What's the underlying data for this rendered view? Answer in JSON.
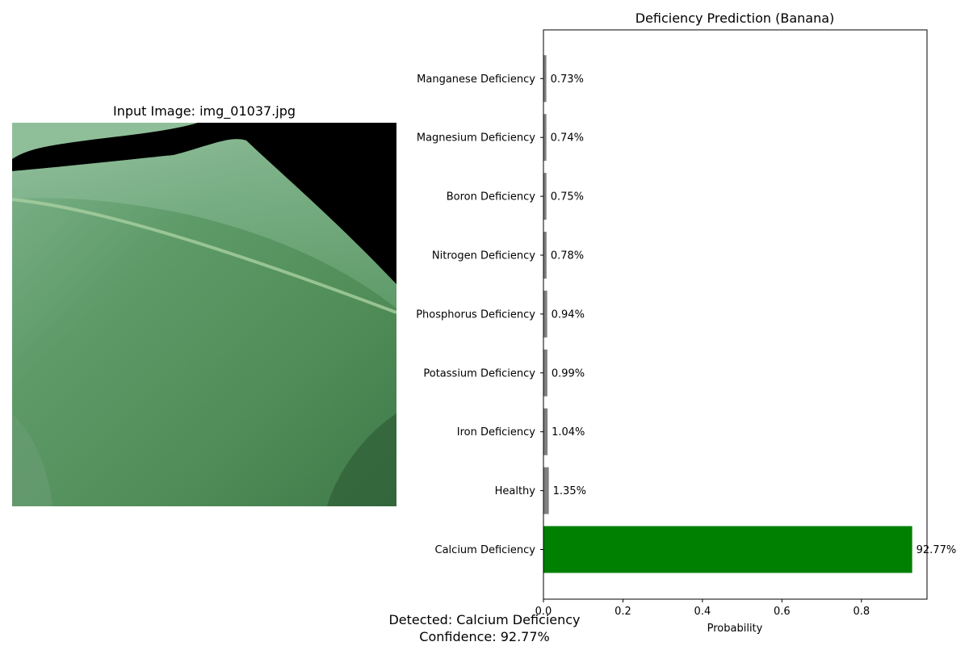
{
  "left_panel": {
    "title": "Input Image: img_01037.jpg"
  },
  "chart_data": {
    "type": "bar",
    "orientation": "horizontal",
    "title": "Deficiency Prediction (Banana)",
    "xlabel": "Probability",
    "ylabel": "",
    "xlim": [
      0,
      0.965
    ],
    "xticks": [
      0.0,
      0.2,
      0.4,
      0.6,
      0.8
    ],
    "xtick_labels": [
      "0.0",
      "0.2",
      "0.4",
      "0.6",
      "0.8"
    ],
    "categories": [
      "Calcium Deficiency",
      "Healthy",
      "Iron Deficiency",
      "Potassium Deficiency",
      "Phosphorus Deficiency",
      "Nitrogen Deficiency",
      "Boron Deficiency",
      "Magnesium Deficiency",
      "Manganese Deficiency"
    ],
    "values": [
      0.9277,
      0.0135,
      0.0104,
      0.0099,
      0.0094,
      0.0078,
      0.0075,
      0.0074,
      0.0073
    ],
    "data_labels": [
      "92.77%",
      "1.35%",
      "1.04%",
      "0.99%",
      "0.94%",
      "0.78%",
      "0.75%",
      "0.74%",
      "0.73%"
    ],
    "colors": [
      "#008000",
      "#808080",
      "#808080",
      "#808080",
      "#808080",
      "#808080",
      "#808080",
      "#808080",
      "#808080"
    ],
    "grid": false,
    "legend": "none"
  },
  "footer": {
    "detected": "Detected: Calcium Deficiency",
    "confidence": "Confidence: 92.77%"
  }
}
